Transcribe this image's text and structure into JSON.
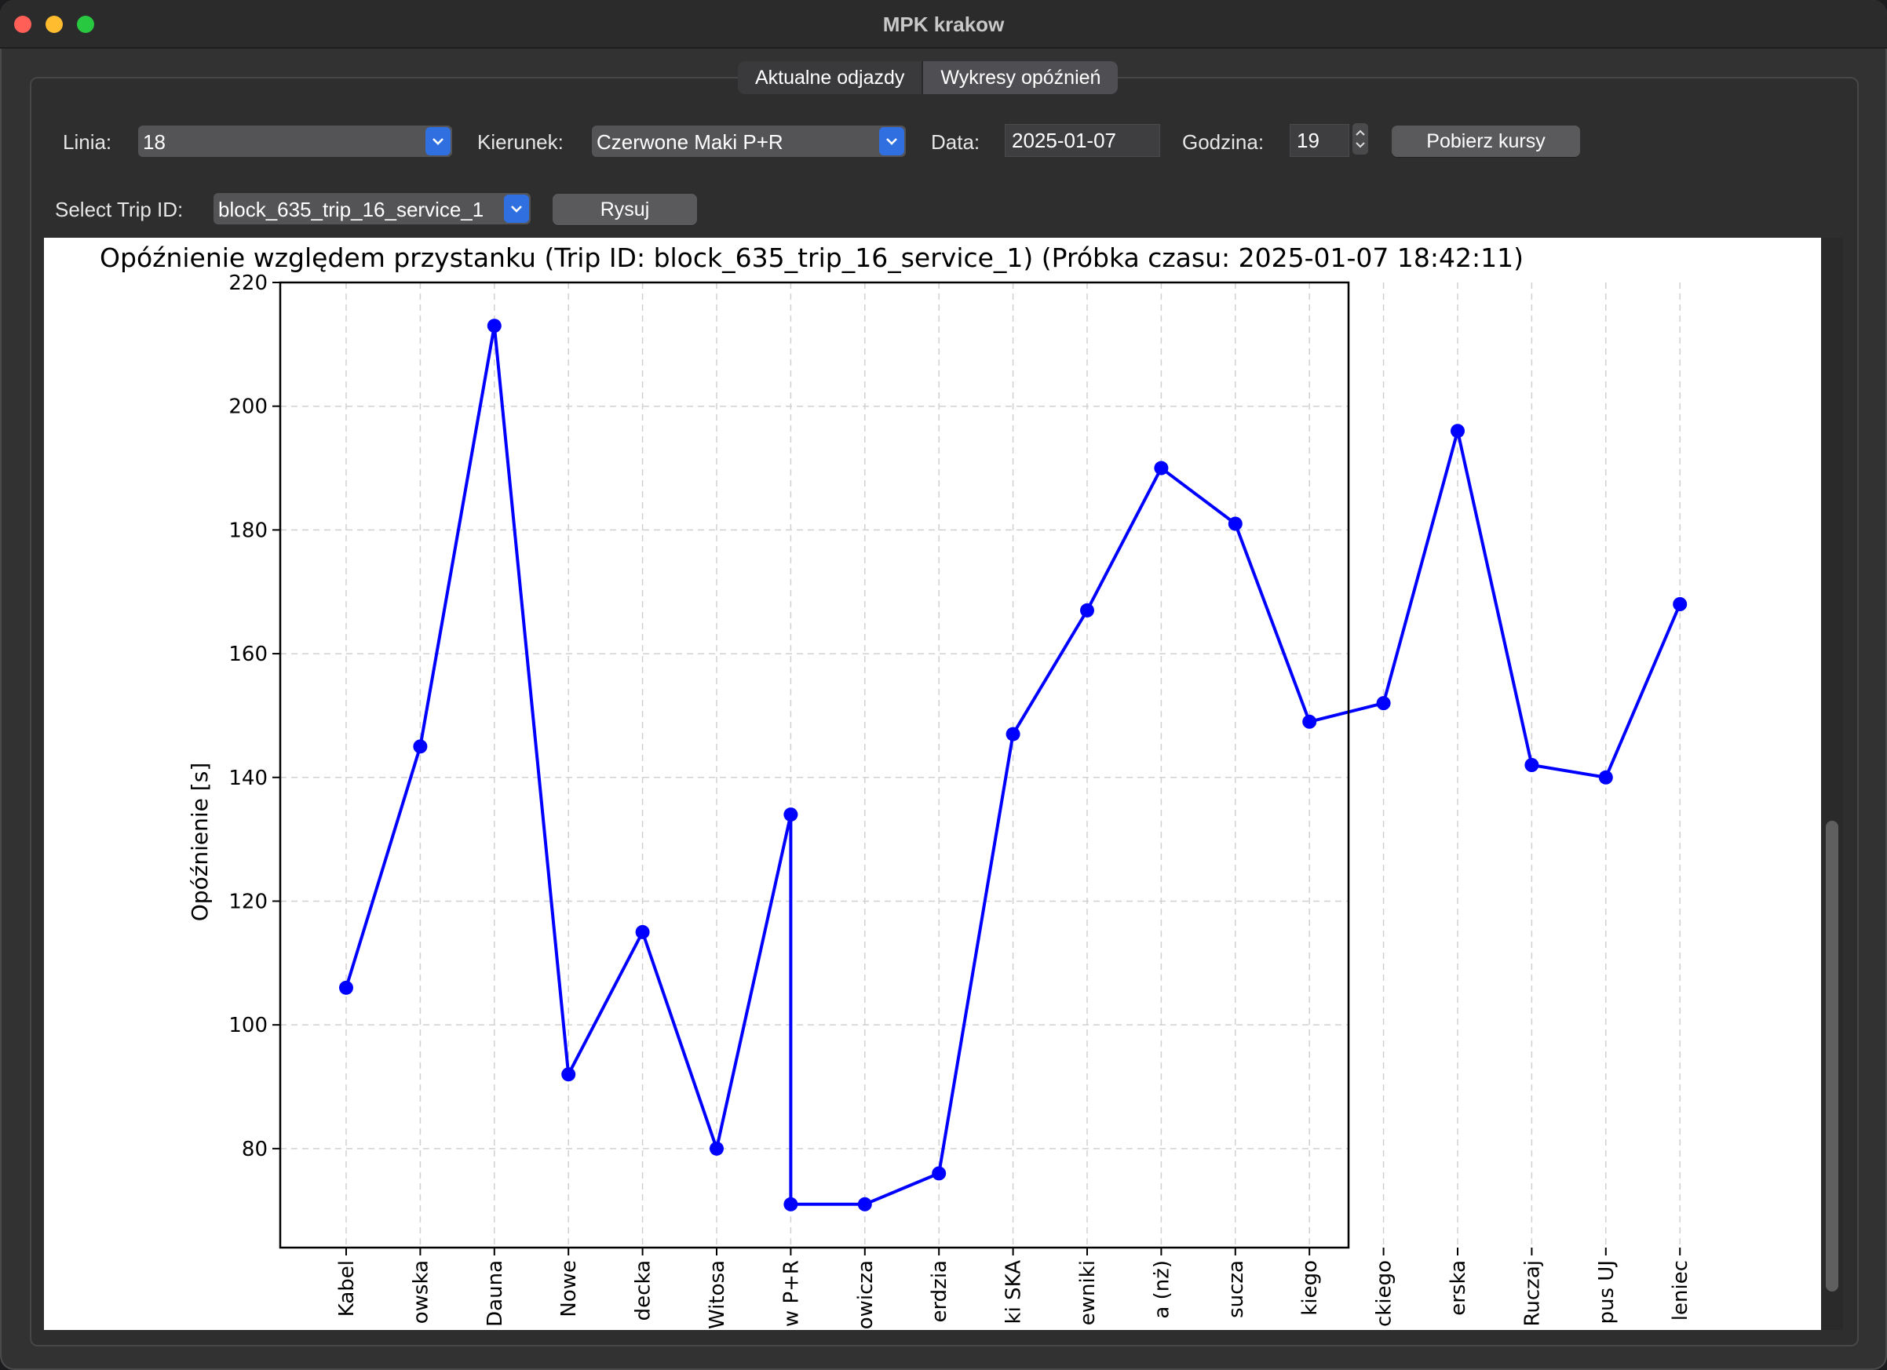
{
  "window": {
    "title": "MPK krakow"
  },
  "tabs": [
    {
      "label": "Aktualne odjazdy",
      "active": false
    },
    {
      "label": "Wykresy opóźnień",
      "active": true
    }
  ],
  "controls": {
    "line_label": "Linia:",
    "line_value": "18",
    "direction_label": "Kierunek:",
    "direction_value": "Czerwone Maki P+R",
    "date_label": "Data:",
    "date_value": "2025-01-07",
    "hour_label": "Godzina:",
    "hour_value": "19",
    "fetch_button": "Pobierz kursy",
    "trip_label": "Select Trip ID:",
    "trip_value": "block_635_trip_16_service_1",
    "draw_button": "Rysuj"
  },
  "colors": {
    "series": "#0000ff",
    "accent": "#2f6fe0"
  },
  "chart_data": {
    "type": "line",
    "title": "Opóźnienie względem przystanku (Trip ID: block_635_trip_16_service_1) (Próbka czasu: 2025-01-07 18:42:11)",
    "xlabel": "",
    "ylabel": "Opóźnienie [s]",
    "ylim": [
      64,
      220
    ],
    "yticks": [
      80,
      100,
      120,
      140,
      160,
      180,
      200,
      220
    ],
    "grid": true,
    "categories": [
      "Kabel",
      "owska",
      "Dauna",
      "Nowe",
      "decka",
      "Witosa",
      "w P+R",
      "owicza",
      "erdzia",
      "ki SKA",
      "ewniki",
      "a (nż)",
      "sucza",
      "kiego",
      "ckiego",
      "erska",
      "Ruczaj",
      "pus UJ",
      "leniec"
    ],
    "series": [
      {
        "points": [
          {
            "x": 0,
            "y": 106
          },
          {
            "x": 1,
            "y": 145
          },
          {
            "x": 2,
            "y": 213
          },
          {
            "x": 3,
            "y": 92
          },
          {
            "x": 4,
            "y": 115
          },
          {
            "x": 5,
            "y": 80
          },
          {
            "x": 6,
            "y": 134
          },
          {
            "x": 6,
            "y": 71
          },
          {
            "x": 7,
            "y": 71
          },
          {
            "x": 8,
            "y": 76
          },
          {
            "x": 9,
            "y": 147
          },
          {
            "x": 10,
            "y": 167
          },
          {
            "x": 11,
            "y": 190
          },
          {
            "x": 12,
            "y": 181
          },
          {
            "x": 13,
            "y": 149
          },
          {
            "x": 14,
            "y": 152
          },
          {
            "x": 15,
            "y": 196
          },
          {
            "x": 16,
            "y": 142
          },
          {
            "x": 17,
            "y": 140
          },
          {
            "x": 18,
            "y": 168
          }
        ]
      }
    ]
  }
}
